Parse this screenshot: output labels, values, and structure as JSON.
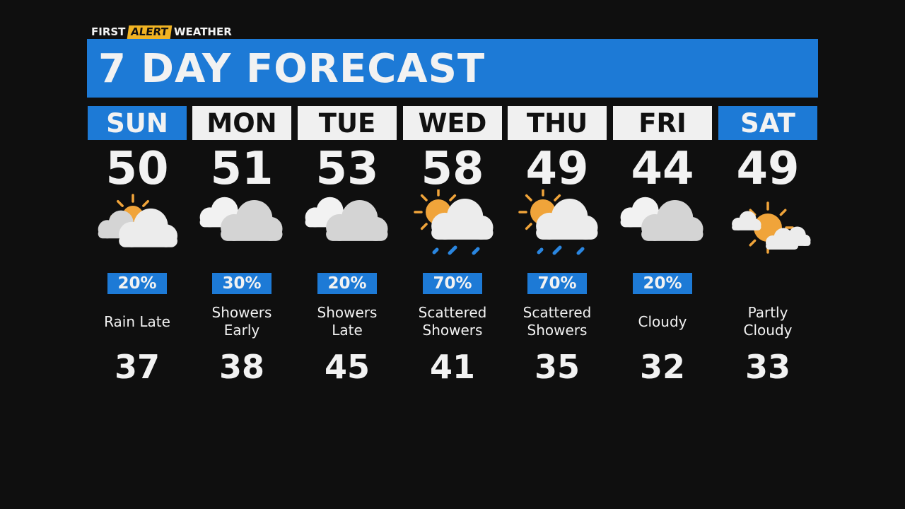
{
  "brand": {
    "first": "FIRST",
    "alert": "ALERT",
    "weather": "WEATHER"
  },
  "title": "7 DAY FORECAST",
  "colors": {
    "accent_blue": "#1d7ad6",
    "alert_yellow": "#f0b323",
    "sun": "#f0a43a",
    "cloud": "#ececec"
  },
  "days": [
    {
      "day": "SUN",
      "highlight": true,
      "high": "50",
      "icon": "partly-sunny",
      "pop": "20%",
      "desc": [
        "Rain Late"
      ],
      "low": "37"
    },
    {
      "day": "MON",
      "highlight": false,
      "high": "51",
      "icon": "cloudy",
      "pop": "30%",
      "desc": [
        "Showers",
        "Early"
      ],
      "low": "38"
    },
    {
      "day": "TUE",
      "highlight": false,
      "high": "53",
      "icon": "cloudy",
      "pop": "20%",
      "desc": [
        "Showers",
        "Late"
      ],
      "low": "45"
    },
    {
      "day": "WED",
      "highlight": false,
      "high": "58",
      "icon": "sun-cloud-rain",
      "pop": "70%",
      "desc": [
        "Scattered",
        "Showers"
      ],
      "low": "41"
    },
    {
      "day": "THU",
      "highlight": false,
      "high": "49",
      "icon": "sun-cloud-rain",
      "pop": "70%",
      "desc": [
        "Scattered",
        "Showers"
      ],
      "low": "35"
    },
    {
      "day": "FRI",
      "highlight": false,
      "high": "44",
      "icon": "cloudy",
      "pop": "20%",
      "desc": [
        "Cloudy"
      ],
      "low": "32"
    },
    {
      "day": "SAT",
      "highlight": true,
      "high": "49",
      "icon": "partly-cloudy",
      "pop": "",
      "desc": [
        "Partly",
        "Cloudy"
      ],
      "low": "33"
    }
  ]
}
